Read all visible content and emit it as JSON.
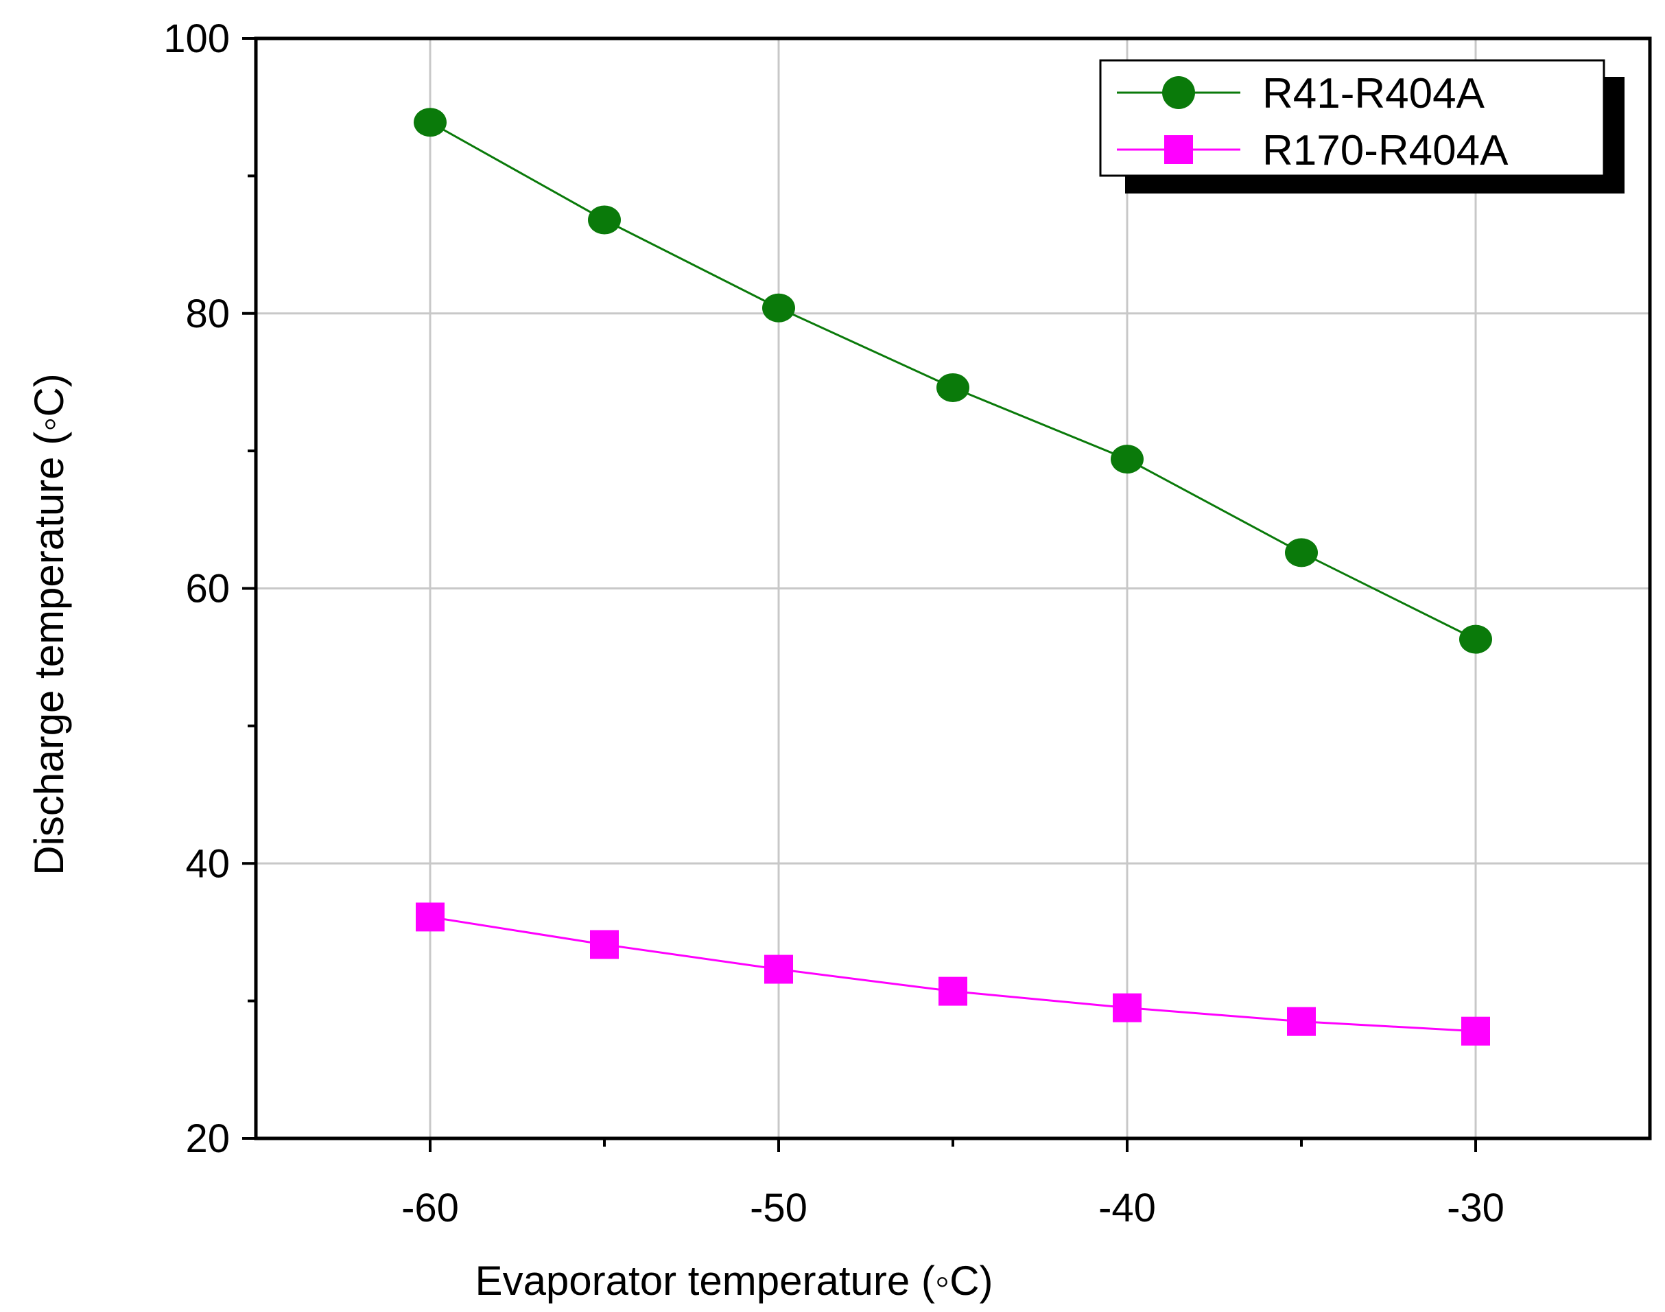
{
  "chart_data": {
    "type": "line",
    "title": "",
    "xlabel": "Evaporator temperature (◦C)",
    "ylabel": "Discharge temperature (◦C)",
    "x": [
      -60,
      -55,
      -50,
      -45,
      -40,
      -35,
      -30
    ],
    "xlim": [
      -65,
      -25
    ],
    "ylim": [
      20,
      100
    ],
    "xticks": [
      -60,
      -50,
      -40,
      -30
    ],
    "xtick_labels": [
      "-60",
      "-50",
      "-40",
      "-30"
    ],
    "xminor": [
      -55,
      -45,
      -35
    ],
    "yticks": [
      20,
      40,
      60,
      80,
      100
    ],
    "ytick_labels": [
      "20",
      "40",
      "60",
      "80",
      "100"
    ],
    "yminor": [
      30,
      50,
      70,
      90
    ],
    "grid": true,
    "legend_position": "top-right",
    "series": [
      {
        "name": "R41-R404A",
        "marker": "circle",
        "color": "#0a7a0a",
        "values": [
          93.9,
          86.8,
          80.4,
          74.6,
          69.4,
          62.6,
          56.3
        ]
      },
      {
        "name": "R170-R404A",
        "marker": "square",
        "color": "#ff00ff",
        "values": [
          36.1,
          34.1,
          32.3,
          30.7,
          29.5,
          28.5,
          27.8
        ]
      }
    ]
  }
}
